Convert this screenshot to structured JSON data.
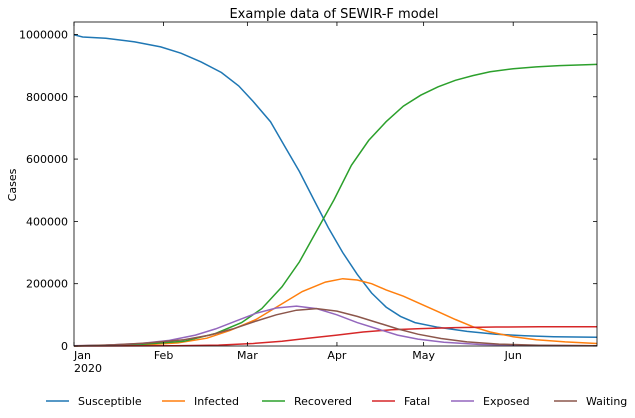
{
  "chart_data": {
    "type": "line",
    "title": "Example data of SEWIR-F model",
    "xlabel": "",
    "ylabel": "Cases",
    "x_unit": "day",
    "x_range": [
      "2020-01-01",
      "2020-06-30"
    ],
    "ylim": [
      0,
      1040000
    ],
    "yticks": [
      {
        "value": 0,
        "label": "0"
      },
      {
        "value": 200000,
        "label": "200000"
      },
      {
        "value": 400000,
        "label": "400000"
      },
      {
        "value": 600000,
        "label": "600000"
      },
      {
        "value": 800000,
        "label": "800000"
      },
      {
        "value": 1000000,
        "label": "1000000"
      }
    ],
    "xticks": [
      {
        "date": "2020-01-01",
        "label": "Jan",
        "sublabel": "2020"
      },
      {
        "date": "2020-02-01",
        "label": "Feb",
        "sublabel": ""
      },
      {
        "date": "2020-03-01",
        "label": "Mar",
        "sublabel": ""
      },
      {
        "date": "2020-04-01",
        "label": "Apr",
        "sublabel": ""
      },
      {
        "date": "2020-05-01",
        "label": "May",
        "sublabel": ""
      },
      {
        "date": "2020-06-01",
        "label": "Jun",
        "sublabel": ""
      }
    ],
    "grid": false,
    "legend_position": "bottom",
    "series": [
      {
        "name": "Susceptible",
        "color": "#1f77b4",
        "points": [
          [
            "2020-01-01",
            999000
          ],
          [
            "2020-01-04",
            992000
          ],
          [
            "2020-01-12",
            988000
          ],
          [
            "2020-01-22",
            976000
          ],
          [
            "2020-01-31",
            960000
          ],
          [
            "2020-02-07",
            940000
          ],
          [
            "2020-02-14",
            912000
          ],
          [
            "2020-02-21",
            878000
          ],
          [
            "2020-02-27",
            835000
          ],
          [
            "2020-03-03",
            785000
          ],
          [
            "2020-03-09",
            720000
          ],
          [
            "2020-03-14",
            640000
          ],
          [
            "2020-03-19",
            560000
          ],
          [
            "2020-03-24",
            470000
          ],
          [
            "2020-03-29",
            380000
          ],
          [
            "2020-04-03",
            300000
          ],
          [
            "2020-04-08",
            230000
          ],
          [
            "2020-04-13",
            170000
          ],
          [
            "2020-04-18",
            125000
          ],
          [
            "2020-04-23",
            95000
          ],
          [
            "2020-04-28",
            75000
          ],
          [
            "2020-05-06",
            60000
          ],
          [
            "2020-05-16",
            47000
          ],
          [
            "2020-05-26",
            38000
          ],
          [
            "2020-06-05",
            33000
          ],
          [
            "2020-06-15",
            30000
          ],
          [
            "2020-06-30",
            28000
          ]
        ]
      },
      {
        "name": "Infected",
        "color": "#ff7f0e",
        "points": [
          [
            "2020-01-01",
            1000
          ],
          [
            "2020-01-14",
            2000
          ],
          [
            "2020-01-26",
            4000
          ],
          [
            "2020-02-06",
            10000
          ],
          [
            "2020-02-16",
            25000
          ],
          [
            "2020-02-24",
            50000
          ],
          [
            "2020-03-04",
            85000
          ],
          [
            "2020-03-12",
            130000
          ],
          [
            "2020-03-20",
            175000
          ],
          [
            "2020-03-28",
            205000
          ],
          [
            "2020-04-03",
            216000
          ],
          [
            "2020-04-08",
            212000
          ],
          [
            "2020-04-13",
            200000
          ],
          [
            "2020-04-18",
            180000
          ],
          [
            "2020-04-24",
            160000
          ],
          [
            "2020-04-30",
            135000
          ],
          [
            "2020-05-06",
            110000
          ],
          [
            "2020-05-12",
            85000
          ],
          [
            "2020-05-18",
            62000
          ],
          [
            "2020-05-24",
            45000
          ],
          [
            "2020-06-01",
            30000
          ],
          [
            "2020-06-09",
            20000
          ],
          [
            "2020-06-19",
            13000
          ],
          [
            "2020-06-30",
            8000
          ]
        ]
      },
      {
        "name": "Recovered",
        "color": "#2ca02c",
        "points": [
          [
            "2020-01-01",
            0
          ],
          [
            "2020-01-24",
            5000
          ],
          [
            "2020-02-08",
            15000
          ],
          [
            "2020-02-19",
            40000
          ],
          [
            "2020-02-28",
            75000
          ],
          [
            "2020-03-06",
            120000
          ],
          [
            "2020-03-13",
            190000
          ],
          [
            "2020-03-19",
            270000
          ],
          [
            "2020-03-25",
            370000
          ],
          [
            "2020-03-31",
            470000
          ],
          [
            "2020-04-06",
            580000
          ],
          [
            "2020-04-12",
            660000
          ],
          [
            "2020-04-18",
            720000
          ],
          [
            "2020-04-24",
            770000
          ],
          [
            "2020-04-30",
            805000
          ],
          [
            "2020-05-06",
            832000
          ],
          [
            "2020-05-12",
            853000
          ],
          [
            "2020-05-18",
            868000
          ],
          [
            "2020-05-24",
            880000
          ],
          [
            "2020-06-01",
            890000
          ],
          [
            "2020-06-09",
            896000
          ],
          [
            "2020-06-17",
            900000
          ],
          [
            "2020-06-30",
            904000
          ]
        ]
      },
      {
        "name": "Fatal",
        "color": "#d62728",
        "points": [
          [
            "2020-01-01",
            0
          ],
          [
            "2020-02-05",
            1000
          ],
          [
            "2020-02-20",
            3000
          ],
          [
            "2020-03-03",
            8000
          ],
          [
            "2020-03-13",
            15000
          ],
          [
            "2020-03-22",
            25000
          ],
          [
            "2020-04-01",
            35000
          ],
          [
            "2020-04-10",
            45000
          ],
          [
            "2020-04-20",
            52000
          ],
          [
            "2020-04-30",
            56000
          ],
          [
            "2020-05-12",
            59000
          ],
          [
            "2020-05-26",
            61000
          ],
          [
            "2020-06-10",
            61500
          ],
          [
            "2020-06-30",
            62000
          ]
        ]
      },
      {
        "name": "Exposed",
        "color": "#9467bd",
        "points": [
          [
            "2020-01-01",
            1000
          ],
          [
            "2020-01-12",
            3000
          ],
          [
            "2020-01-24",
            8000
          ],
          [
            "2020-02-03",
            18000
          ],
          [
            "2020-02-12",
            35000
          ],
          [
            "2020-02-19",
            55000
          ],
          [
            "2020-02-26",
            80000
          ],
          [
            "2020-03-04",
            105000
          ],
          [
            "2020-03-11",
            122000
          ],
          [
            "2020-03-18",
            128000
          ],
          [
            "2020-03-25",
            120000
          ],
          [
            "2020-04-01",
            100000
          ],
          [
            "2020-04-08",
            75000
          ],
          [
            "2020-04-15",
            55000
          ],
          [
            "2020-04-22",
            35000
          ],
          [
            "2020-04-29",
            22000
          ],
          [
            "2020-05-08",
            12000
          ],
          [
            "2020-05-20",
            5000
          ],
          [
            "2020-06-05",
            2000
          ],
          [
            "2020-06-30",
            500
          ]
        ]
      },
      {
        "name": "Waiting",
        "color": "#8c564b",
        "points": [
          [
            "2020-01-01",
            0
          ],
          [
            "2020-01-15",
            4000
          ],
          [
            "2020-01-27",
            10000
          ],
          [
            "2020-02-08",
            20000
          ],
          [
            "2020-02-17",
            35000
          ],
          [
            "2020-02-25",
            55000
          ],
          [
            "2020-03-04",
            80000
          ],
          [
            "2020-03-11",
            100000
          ],
          [
            "2020-03-18",
            115000
          ],
          [
            "2020-03-25",
            120000
          ],
          [
            "2020-04-01",
            112000
          ],
          [
            "2020-04-08",
            95000
          ],
          [
            "2020-04-15",
            75000
          ],
          [
            "2020-04-22",
            55000
          ],
          [
            "2020-04-29",
            38000
          ],
          [
            "2020-05-07",
            24000
          ],
          [
            "2020-05-16",
            13000
          ],
          [
            "2020-05-27",
            6000
          ],
          [
            "2020-06-10",
            2500
          ],
          [
            "2020-06-30",
            1000
          ]
        ]
      }
    ]
  }
}
